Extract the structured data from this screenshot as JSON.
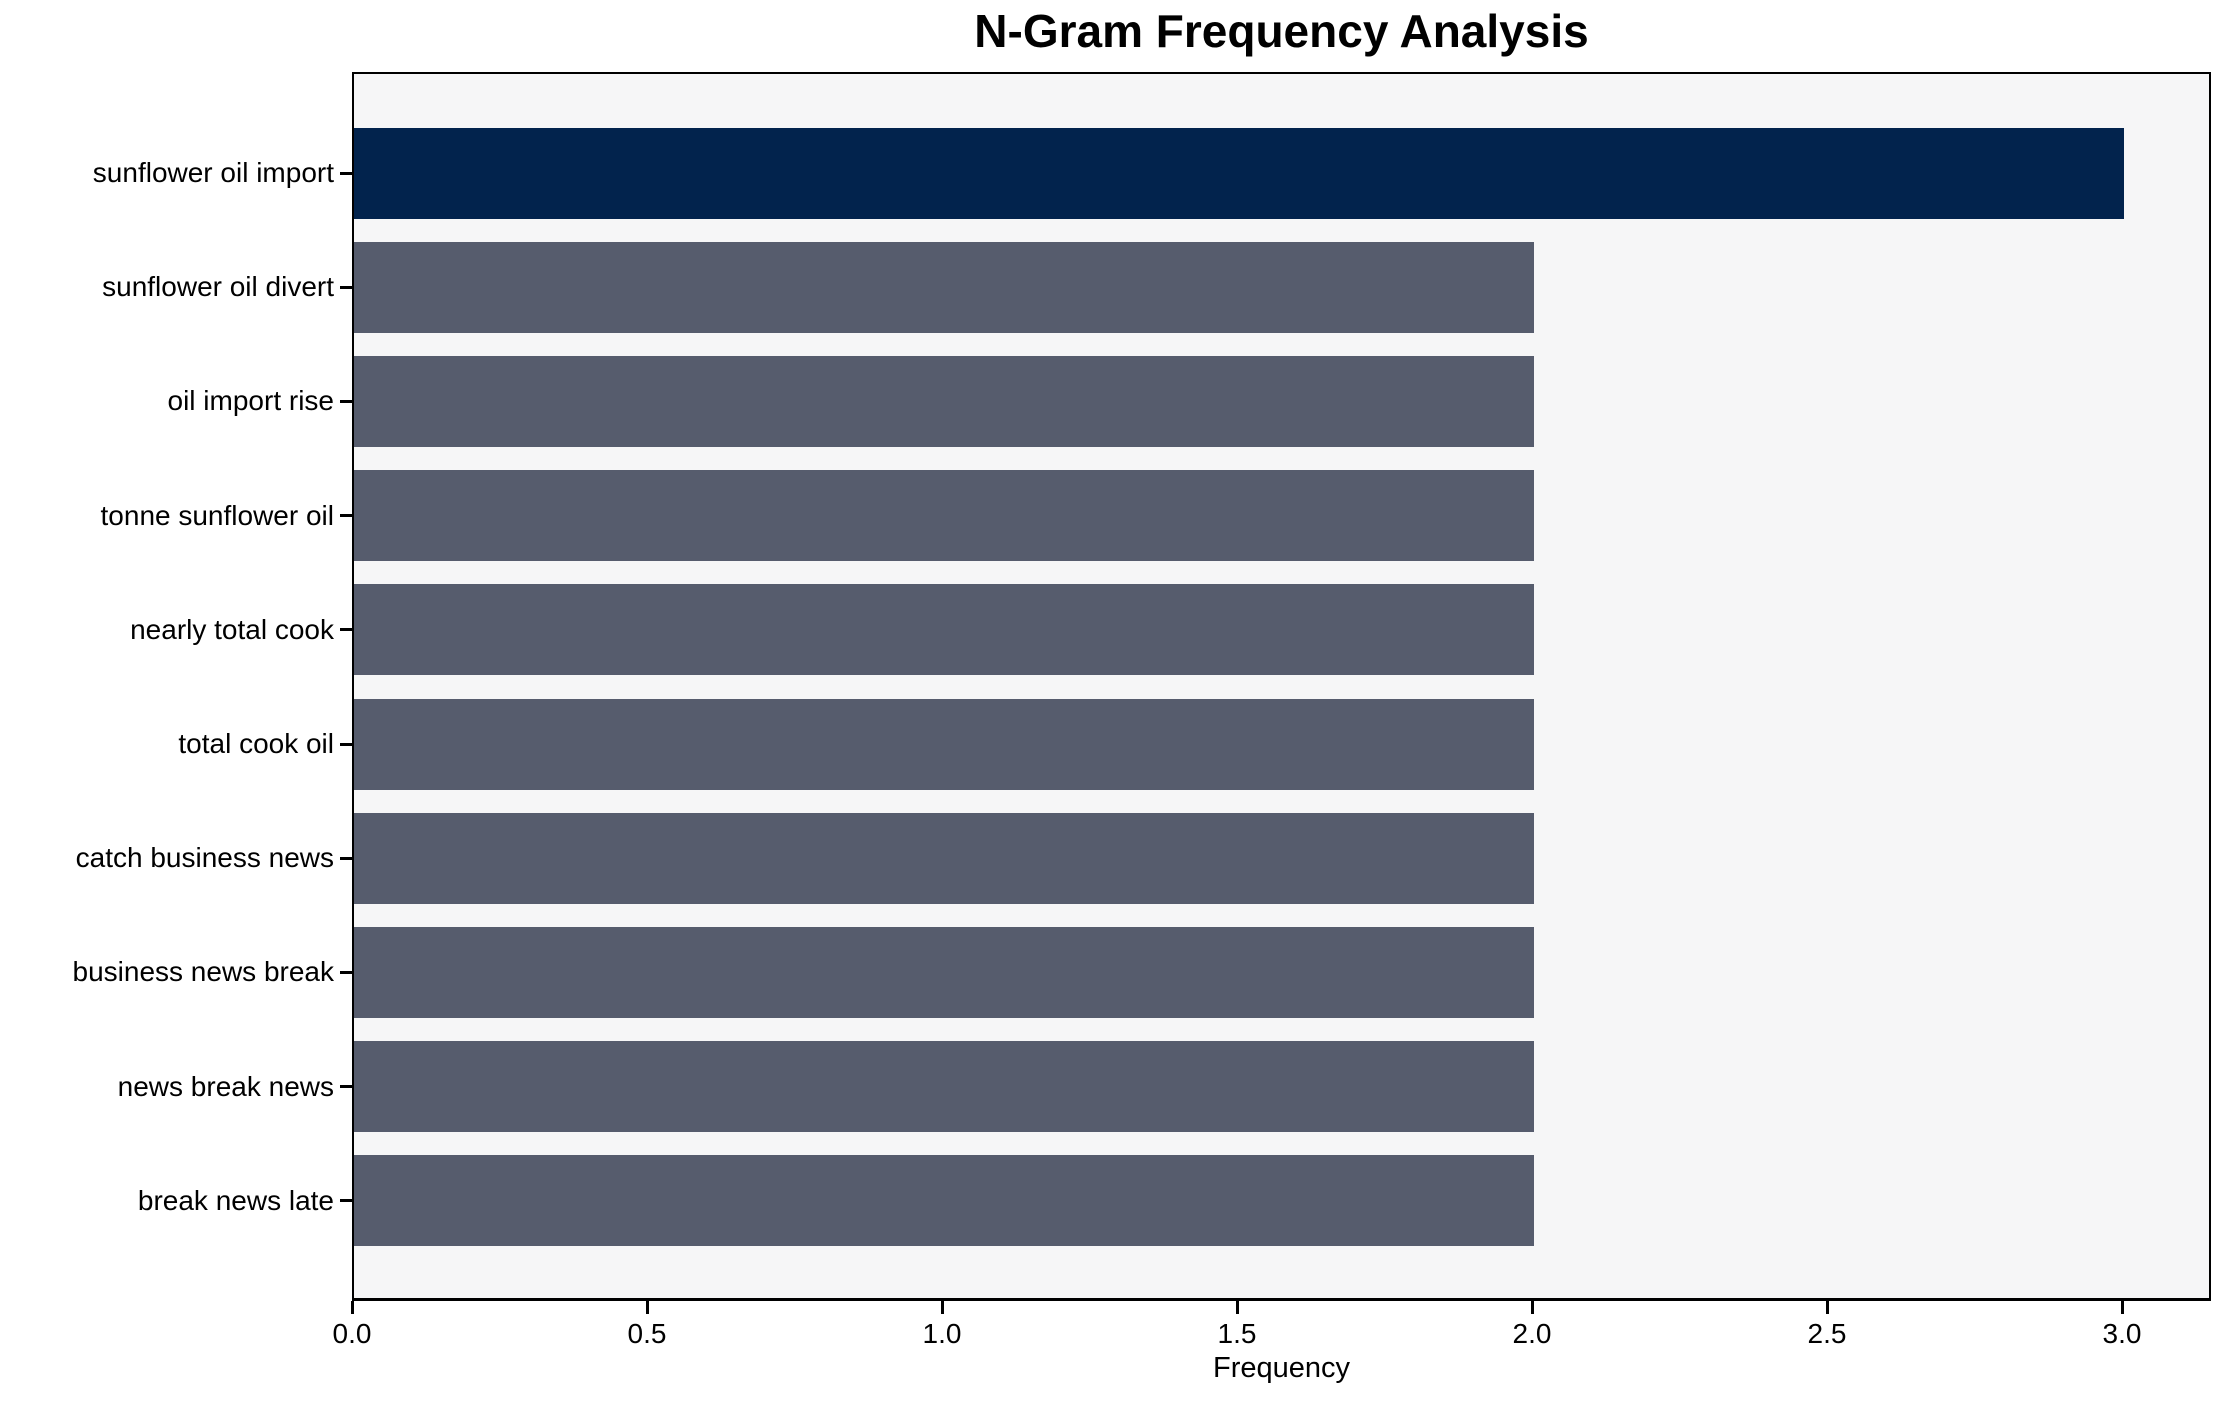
{
  "chart_data": {
    "type": "bar",
    "orientation": "horizontal",
    "title": "N-Gram Frequency Analysis",
    "xlabel": "Frequency",
    "ylabel": "",
    "categories": [
      "sunflower oil import",
      "sunflower oil divert",
      "oil import rise",
      "tonne sunflower oil",
      "nearly total cook",
      "total cook oil",
      "catch business news",
      "business news break",
      "news break news",
      "break news late"
    ],
    "values": [
      3,
      2,
      2,
      2,
      2,
      2,
      2,
      2,
      2,
      2
    ],
    "xlim": [
      0,
      3.15
    ],
    "x_ticks": [
      0.0,
      0.5,
      1.0,
      1.5,
      2.0,
      2.5,
      3.0
    ],
    "x_tick_labels": [
      "0.0",
      "0.5",
      "1.0",
      "1.5",
      "2.0",
      "2.5",
      "3.0"
    ],
    "grid": false,
    "legend": "none",
    "colors": {
      "highlight_bar": "#02234d",
      "default_bar": "#565c6d",
      "plot_background": "#f6f6f7",
      "figure_background": "#ffffff",
      "axis": "#000000",
      "text": "#000000"
    },
    "bar_colors": [
      "#02234d",
      "#565c6d",
      "#565c6d",
      "#565c6d",
      "#565c6d",
      "#565c6d",
      "#565c6d",
      "#565c6d",
      "#565c6d",
      "#565c6d"
    ]
  }
}
